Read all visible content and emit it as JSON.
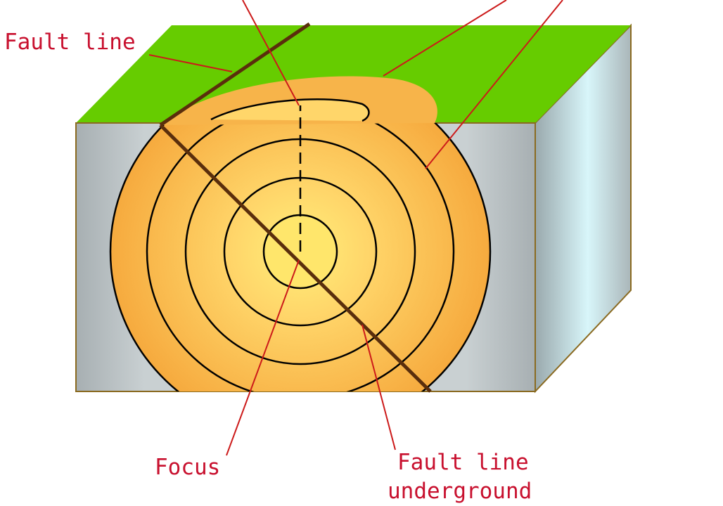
{
  "labels": {
    "fault_line": "Fault line",
    "focus": "Focus",
    "fault_line_underground": [
      "Fault line",
      "underground"
    ]
  },
  "colors": {
    "label_text": "#c8102e",
    "leader_lines": "#cc1a1a",
    "ground_surface": "#66cc00",
    "block_side": "#b6bfc2",
    "block_right_face": "#c9eef2",
    "wave_fill": "#f7b44a",
    "wave_inner": "#ffe66b",
    "fault_line": "#5a2e0c",
    "block_edge": "#8a6a20"
  },
  "icons": {
    "diagram": "earthquake-focus-block-diagram"
  }
}
